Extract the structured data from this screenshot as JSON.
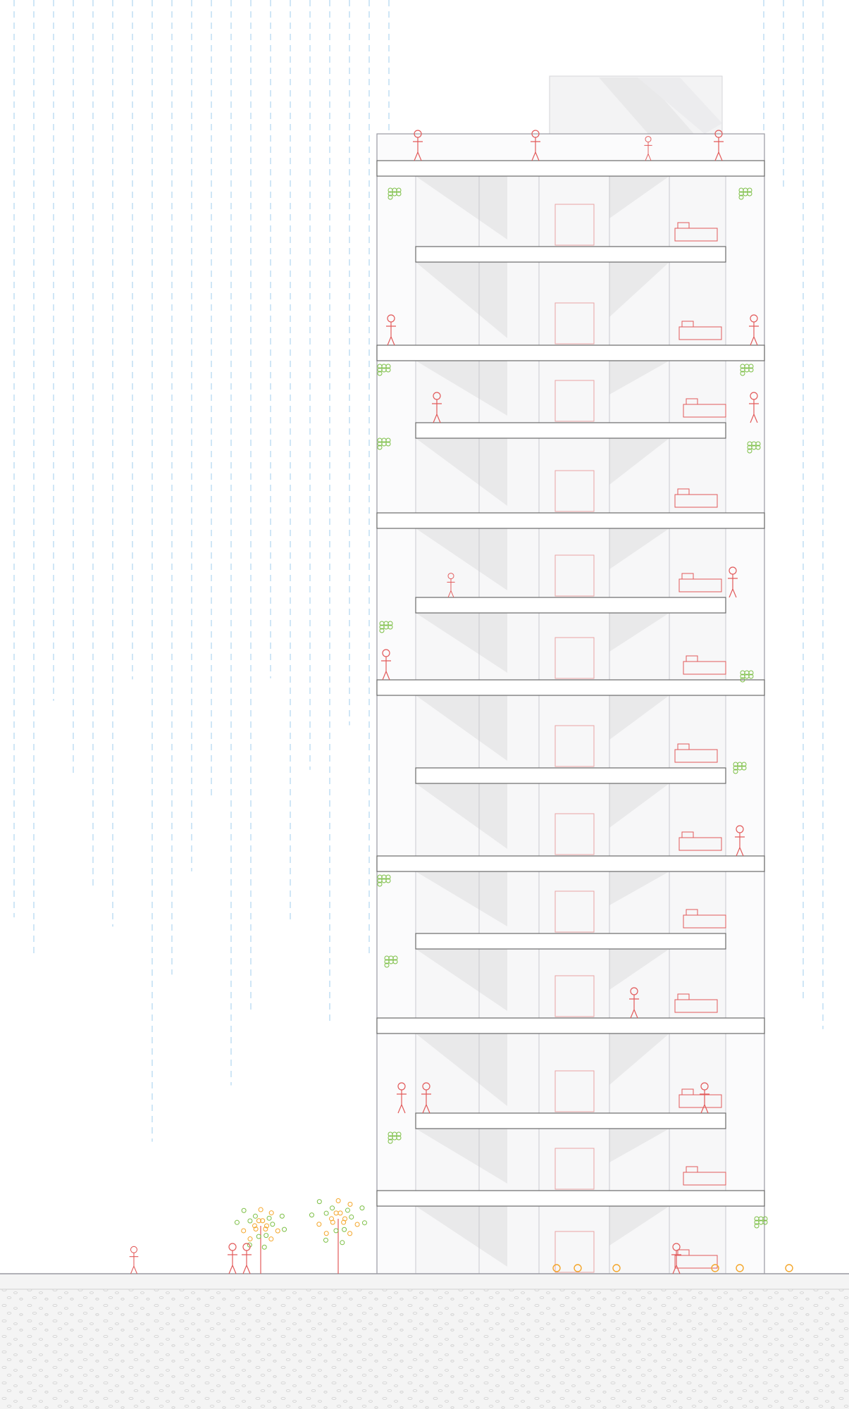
{
  "drawing": {
    "kind": "architectural building section",
    "floors": 13,
    "colors": {
      "background": "#ffffff",
      "ground": "#f4f4f4",
      "ground_pebble": "#cfcfcf",
      "rain": "#8fc6ea",
      "slab_fill": "#ffffff",
      "slab_stroke": "#6b6b6b",
      "interior": "#f7f7f8",
      "shadow": "#e9e9ea",
      "line": "#c9c9cf",
      "figures": "#e25a5a",
      "plants": "#7cbf45",
      "flowers": "#f4a62a"
    }
  }
}
